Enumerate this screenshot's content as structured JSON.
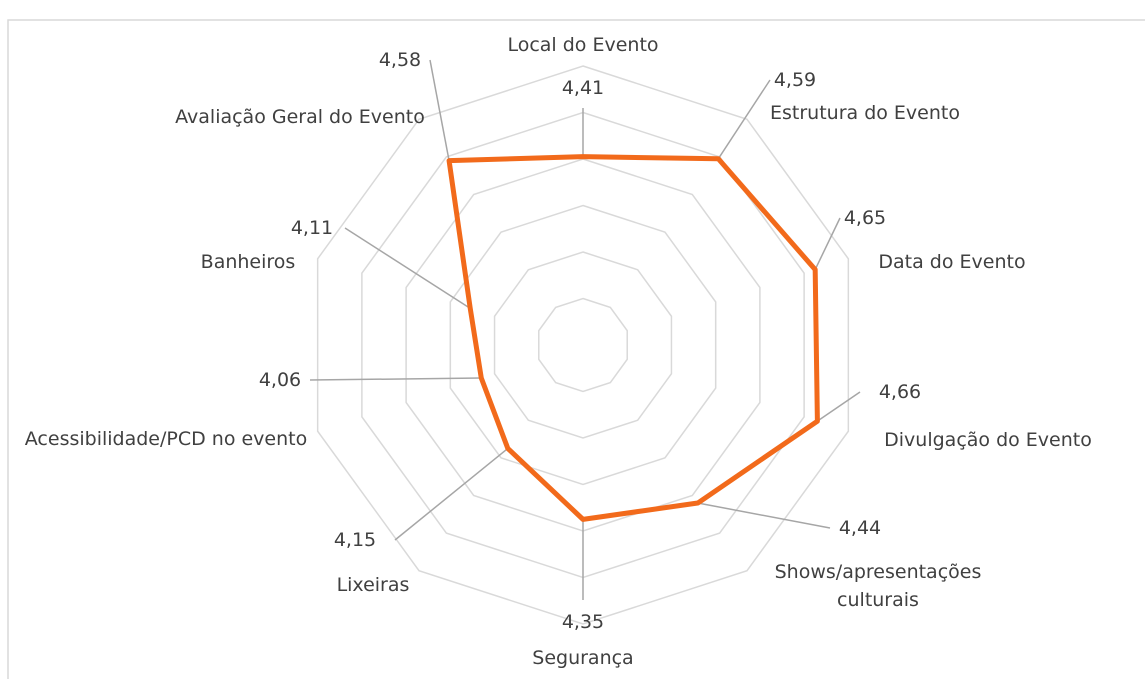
{
  "chart_data": {
    "type": "radar",
    "categories": [
      "Local do Evento",
      "Estrutura do Evento",
      "Data do Evento",
      "Divulgação do Evento",
      "Shows/apresentações culturais",
      "Segurança",
      "Lixeiras",
      "Acessibilidade/PCD no evento",
      "Banheiros",
      "Avaliação Geral do Evento"
    ],
    "series": [
      {
        "color": "#F26A1B",
        "values": [
          4.41,
          4.59,
          4.65,
          4.66,
          4.44,
          4.35,
          4.15,
          4.06,
          4.11,
          4.58
        ],
        "value_labels": [
          "4,41",
          "4,59",
          "4,65",
          "4,66",
          "4,44",
          "4,35",
          "4,15",
          "4,06",
          "4,11",
          "4,58"
        ]
      }
    ],
    "rlim": [
      3.6,
      4.8
    ],
    "rticks": [
      3.6,
      3.8,
      4.0,
      4.2,
      4.4,
      4.6,
      4.8
    ],
    "grid": true
  }
}
